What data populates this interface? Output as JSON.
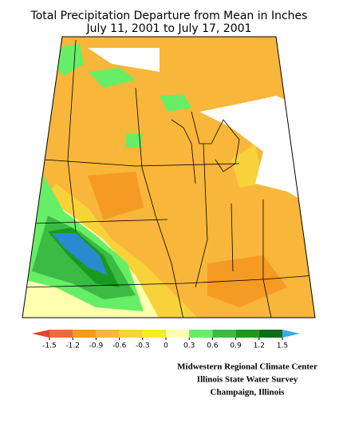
{
  "header": {
    "title": "Total Precipitation Departure from Mean in Inches",
    "subtitle": "July 11, 2001  to July 17, 2001"
  },
  "colorbar": {
    "ticks": [
      -1.5,
      -1.2,
      -0.9,
      -0.6,
      -0.3,
      0,
      0.3,
      0.6,
      0.9,
      1.2,
      1.5
    ],
    "colors": [
      "#e8402c",
      "#f06a3c",
      "#f59a22",
      "#f8b63a",
      "#f8d23a",
      "#f6ec22",
      "#ffffb0",
      "#66ee66",
      "#3cbb44",
      "#1a9a1a",
      "#0a6e14",
      "#2a8ad0",
      "#3aaaee"
    ]
  },
  "credits": [
    "Midwestern Regional Climate Center",
    "Illinois State Water Survey",
    "Champaign, Illinois"
  ]
}
